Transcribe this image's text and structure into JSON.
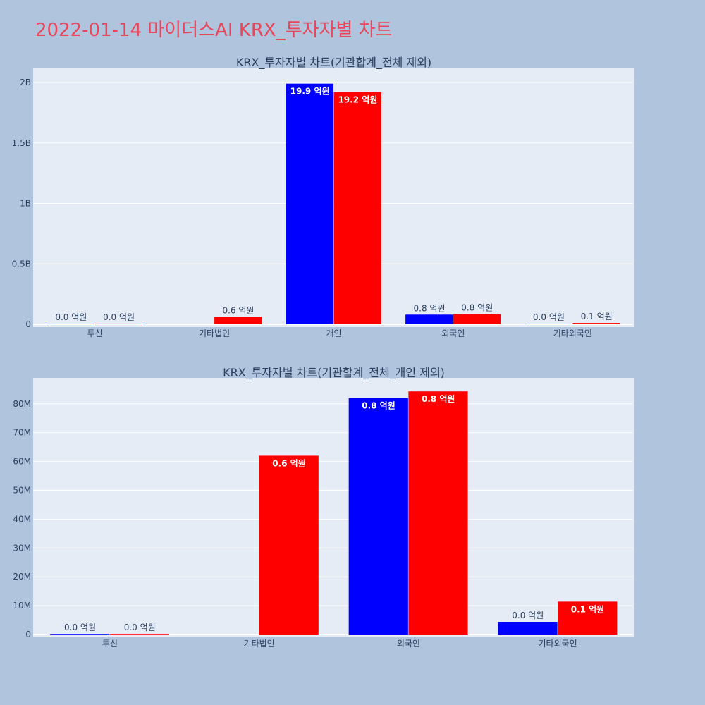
{
  "page_title": "2022-01-14 마이더스AI KRX_투자자별 차트",
  "colors": {
    "background": "#b0c4de",
    "plot_bg": "#e5ecf6",
    "title": "#e8465a",
    "text": "#2a3f5f",
    "series_1": "#0000ff",
    "series_2": "#ff0000"
  },
  "chart_data": [
    {
      "type": "bar",
      "title": "KRX_투자자별 차트(기관합계_전체 제외)",
      "categories": [
        "투신",
        "기타법인",
        "개인",
        "외국인",
        "기타외국인"
      ],
      "ylim": [
        0,
        2000000000
      ],
      "yticks": [
        0,
        500000000,
        1000000000,
        1500000000,
        2000000000
      ],
      "ytick_labels": [
        "0",
        "0.5B",
        "1B",
        "1.5B",
        "2B"
      ],
      "grid": true,
      "series": [
        {
          "color": "#0000ff",
          "values": [
            0,
            null,
            1990000000,
            80000000,
            4000000
          ],
          "labels": [
            "0.0 억원",
            "",
            "19.9 억원",
            "0.8 억원",
            "0.0 억원"
          ]
        },
        {
          "color": "#ff0000",
          "values": [
            0,
            62000000,
            1920000000,
            84000000,
            11000000
          ],
          "labels": [
            "0.0 억원",
            "0.6 억원",
            "19.2 억원",
            "0.8 억원",
            "0.1 억원"
          ]
        }
      ]
    },
    {
      "type": "bar",
      "title": "KRX_투자자별 차트(기관합계_전체_개인 제외)",
      "categories": [
        "투신",
        "기타법인",
        "외국인",
        "기타외국인"
      ],
      "ylim": [
        0,
        89000000
      ],
      "yticks": [
        0,
        10000000,
        20000000,
        30000000,
        40000000,
        50000000,
        60000000,
        70000000,
        80000000
      ],
      "ytick_labels": [
        "0",
        "10M",
        "20M",
        "30M",
        "40M",
        "50M",
        "60M",
        "70M",
        "80M"
      ],
      "grid": true,
      "series": [
        {
          "color": "#0000ff",
          "values": [
            0,
            null,
            82000000,
            4400000
          ],
          "labels": [
            "0.0 억원",
            "",
            "0.8 억원",
            "0.0 억원"
          ]
        },
        {
          "color": "#ff0000",
          "values": [
            0,
            62000000,
            84300000,
            11400000
          ],
          "labels": [
            "0.0 억원",
            "0.6 억원",
            "0.8 억원",
            "0.1 억원"
          ]
        }
      ]
    }
  ]
}
